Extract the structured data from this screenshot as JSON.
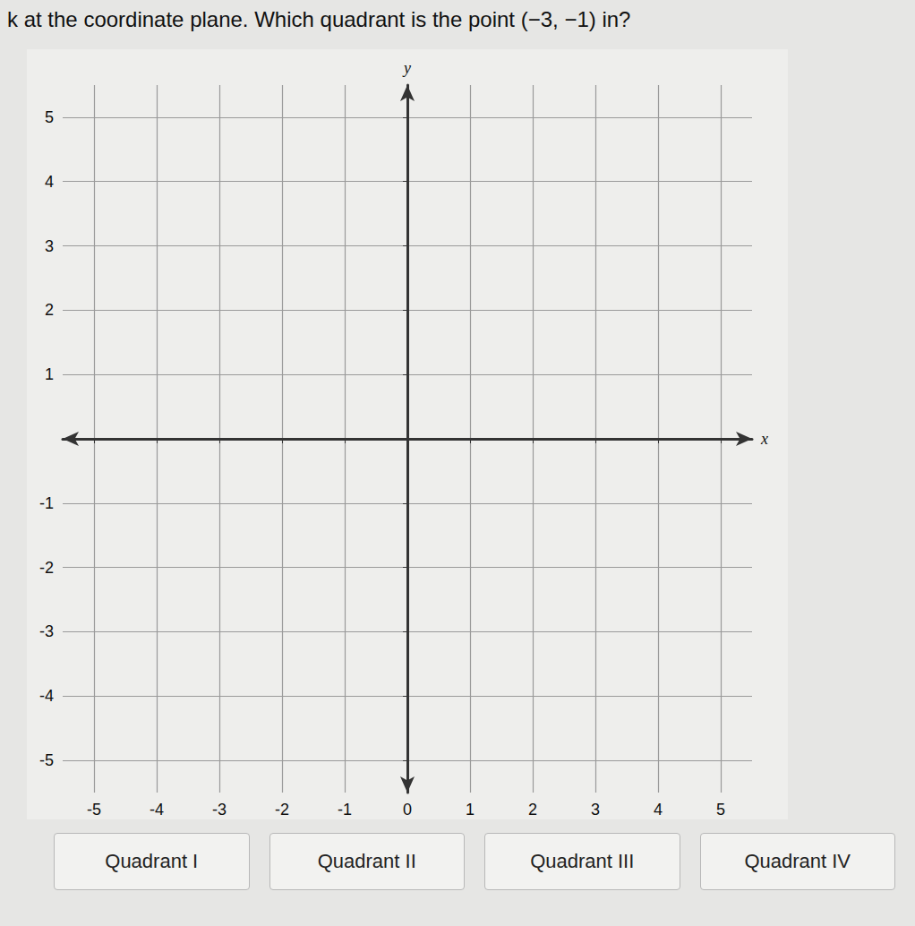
{
  "question": "k at the coordinate plane. Which quadrant is the point (−3, −1) in?",
  "chart_data": {
    "type": "scatter",
    "x_label": "x",
    "y_label": "y",
    "xlim": [
      -5.5,
      5.5
    ],
    "ylim": [
      -5.5,
      5.5
    ],
    "xticks": [
      -5,
      -4,
      -3,
      -2,
      -1,
      0,
      1,
      2,
      3,
      4,
      5
    ],
    "yticks": [
      -5,
      -4,
      -3,
      -2,
      -1,
      1,
      2,
      3,
      4,
      5
    ],
    "grid": true
  },
  "answers": [
    "Quadrant I",
    "Quadrant II",
    "Quadrant III",
    "Quadrant IV"
  ]
}
